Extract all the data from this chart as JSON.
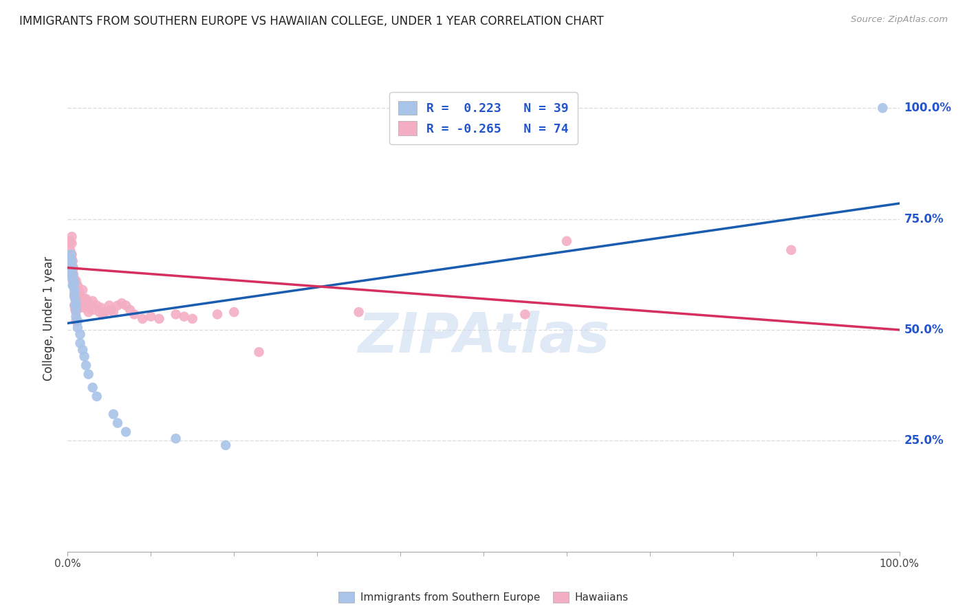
{
  "title": "IMMIGRANTS FROM SOUTHERN EUROPE VS HAWAIIAN COLLEGE, UNDER 1 YEAR CORRELATION CHART",
  "source": "Source: ZipAtlas.com",
  "ylabel": "College, Under 1 year",
  "blue_label": "Immigrants from Southern Europe",
  "pink_label": "Hawaiians",
  "blue_R": 0.223,
  "blue_N": 39,
  "pink_R": -0.265,
  "pink_N": 74,
  "blue_color": "#a8c4e8",
  "pink_color": "#f4aec4",
  "blue_line_color": "#1a5cb0",
  "pink_line_color": "#d63060",
  "legend_text_color": "#2255cc",
  "right_ytick_color": "#2255cc",
  "right_ytick_labels": [
    "100.0%",
    "75.0%",
    "50.0%",
    "25.0%"
  ],
  "right_ytick_values": [
    1.0,
    0.75,
    0.5,
    0.25
  ],
  "blue_scatter_x": [
    0.002,
    0.003,
    0.003,
    0.004,
    0.004,
    0.004,
    0.005,
    0.005,
    0.005,
    0.006,
    0.006,
    0.006,
    0.006,
    0.007,
    0.007,
    0.008,
    0.008,
    0.008,
    0.009,
    0.009,
    0.01,
    0.01,
    0.01,
    0.012,
    0.012,
    0.015,
    0.015,
    0.018,
    0.02,
    0.022,
    0.025,
    0.03,
    0.035,
    0.055,
    0.06,
    0.07,
    0.13,
    0.19,
    0.98
  ],
  "blue_scatter_y": [
    0.655,
    0.64,
    0.66,
    0.63,
    0.65,
    0.67,
    0.62,
    0.635,
    0.655,
    0.6,
    0.615,
    0.625,
    0.64,
    0.61,
    0.6,
    0.59,
    0.605,
    0.58,
    0.57,
    0.555,
    0.545,
    0.56,
    0.53,
    0.52,
    0.505,
    0.49,
    0.47,
    0.455,
    0.44,
    0.42,
    0.4,
    0.37,
    0.35,
    0.31,
    0.29,
    0.27,
    0.255,
    0.24,
    1.0
  ],
  "pink_scatter_x": [
    0.002,
    0.003,
    0.003,
    0.004,
    0.004,
    0.005,
    0.005,
    0.005,
    0.005,
    0.005,
    0.006,
    0.006,
    0.006,
    0.006,
    0.007,
    0.007,
    0.007,
    0.008,
    0.008,
    0.008,
    0.008,
    0.009,
    0.009,
    0.009,
    0.01,
    0.01,
    0.01,
    0.01,
    0.01,
    0.01,
    0.012,
    0.012,
    0.012,
    0.014,
    0.014,
    0.015,
    0.015,
    0.018,
    0.018,
    0.02,
    0.02,
    0.022,
    0.022,
    0.025,
    0.025,
    0.028,
    0.03,
    0.03,
    0.035,
    0.038,
    0.04,
    0.042,
    0.045,
    0.05,
    0.052,
    0.055,
    0.06,
    0.065,
    0.07,
    0.075,
    0.08,
    0.09,
    0.1,
    0.11,
    0.13,
    0.14,
    0.15,
    0.18,
    0.2,
    0.23,
    0.35,
    0.55,
    0.6,
    0.87
  ],
  "pink_scatter_y": [
    0.665,
    0.68,
    0.7,
    0.65,
    0.64,
    0.71,
    0.695,
    0.66,
    0.645,
    0.67,
    0.62,
    0.635,
    0.655,
    0.61,
    0.625,
    0.605,
    0.64,
    0.615,
    0.595,
    0.575,
    0.555,
    0.59,
    0.57,
    0.545,
    0.58,
    0.56,
    0.54,
    0.52,
    0.61,
    0.59,
    0.6,
    0.58,
    0.56,
    0.57,
    0.585,
    0.565,
    0.55,
    0.59,
    0.56,
    0.57,
    0.55,
    0.57,
    0.555,
    0.56,
    0.54,
    0.555,
    0.565,
    0.545,
    0.555,
    0.54,
    0.55,
    0.535,
    0.54,
    0.555,
    0.545,
    0.54,
    0.555,
    0.56,
    0.555,
    0.545,
    0.535,
    0.525,
    0.53,
    0.525,
    0.535,
    0.53,
    0.525,
    0.535,
    0.54,
    0.45,
    0.54,
    0.535,
    0.7,
    0.68
  ],
  "blue_line_x0": 0.0,
  "blue_line_y0": 0.515,
  "blue_line_x1": 1.0,
  "blue_line_y1": 0.785,
  "pink_line_x0": 0.0,
  "pink_line_y0": 0.64,
  "pink_line_x1": 1.0,
  "pink_line_y1": 0.5,
  "watermark": "ZIPAtlas",
  "xlim": [
    0.0,
    1.0
  ],
  "ylim": [
    0.0,
    1.05
  ],
  "grid_color": "#dddddd",
  "background_color": "#ffffff"
}
